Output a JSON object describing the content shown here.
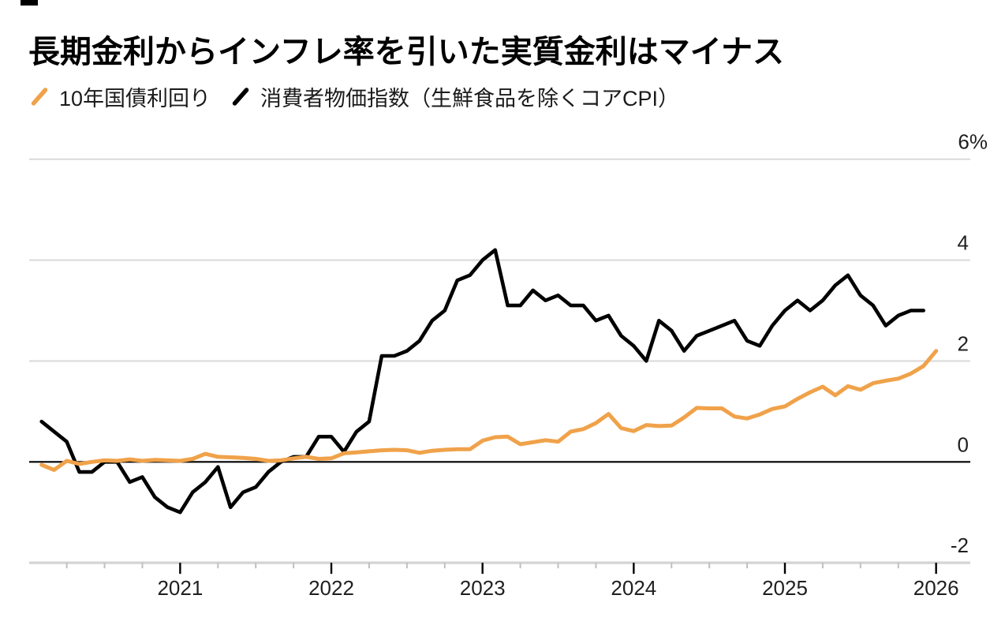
{
  "header": {
    "title": "長期金利からインフレ率を引いた実質金利はマイナス"
  },
  "legend": {
    "items": [
      {
        "label": "10年国債利回り",
        "color": "#F0A24A"
      },
      {
        "label": "消費者物価指数（生鮮食品を除くコアCPI）",
        "color": "#000000"
      }
    ]
  },
  "chart_data": {
    "type": "line",
    "title": "長期金利からインフレ率を引いた実質金利はマイナス",
    "x_axis": {
      "tick_labels": [
        "2021",
        "2022",
        "2023",
        "2024",
        "2025",
        "2026"
      ],
      "minor_ticks": "quarterly",
      "start": "2020-01",
      "end": "2026-03"
    },
    "y_axis": {
      "unit": "%",
      "ticks": [
        {
          "value": 6,
          "label": "6%"
        },
        {
          "value": 4,
          "label": "4"
        },
        {
          "value": 2,
          "label": "2"
        },
        {
          "value": 0,
          "label": "0"
        },
        {
          "value": -2,
          "label": "-2"
        }
      ],
      "range": [
        -2.4,
        6.4
      ],
      "zero_baseline": true
    },
    "grid_color": "#d9d9d9",
    "axis_line_color": "#d4d4d4",
    "zero_line_color": "#000000",
    "legend_position": "top-left",
    "series": [
      {
        "name": "10年国債利回り",
        "color": "#F0A24A",
        "start_month": "2020-01",
        "frequency": "monthly",
        "values": [
          -0.06,
          -0.16,
          0.02,
          -0.04,
          0.0,
          0.03,
          0.02,
          0.05,
          0.02,
          0.04,
          0.03,
          0.02,
          0.06,
          0.16,
          0.1,
          0.09,
          0.08,
          0.06,
          0.02,
          0.03,
          0.07,
          0.1,
          0.06,
          0.07,
          0.17,
          0.19,
          0.21,
          0.23,
          0.24,
          0.23,
          0.18,
          0.22,
          0.24,
          0.25,
          0.25,
          0.42,
          0.49,
          0.5,
          0.35,
          0.39,
          0.43,
          0.4,
          0.6,
          0.65,
          0.77,
          0.95,
          0.67,
          0.61,
          0.73,
          0.71,
          0.72,
          0.88,
          1.07,
          1.06,
          1.06,
          0.9,
          0.86,
          0.94,
          1.05,
          1.1,
          1.25,
          1.38,
          1.49,
          1.32,
          1.5,
          1.43,
          1.56,
          1.61,
          1.65,
          1.75,
          1.9,
          2.2
        ]
      },
      {
        "name": "消費者物価指数（生鮮食品を除くコアCPI）",
        "color": "#000000",
        "start_month": "2020-01",
        "frequency": "monthly",
        "values": [
          0.8,
          0.6,
          0.4,
          -0.2,
          -0.2,
          0.0,
          0.0,
          -0.4,
          -0.3,
          -0.7,
          -0.9,
          -1.0,
          -0.6,
          -0.4,
          -0.1,
          -0.9,
          -0.6,
          -0.5,
          -0.2,
          0.0,
          0.1,
          0.1,
          0.5,
          0.5,
          0.2,
          0.6,
          0.8,
          2.1,
          2.1,
          2.2,
          2.4,
          2.8,
          3.0,
          3.6,
          3.7,
          4.0,
          4.2,
          3.1,
          3.1,
          3.4,
          3.2,
          3.3,
          3.1,
          3.1,
          2.8,
          2.9,
          2.5,
          2.3,
          2.0,
          2.8,
          2.6,
          2.2,
          2.5,
          2.6,
          2.7,
          2.8,
          2.4,
          2.3,
          2.7,
          3.0,
          3.2,
          3.0,
          3.2,
          3.5,
          3.7,
          3.3,
          3.1,
          2.7,
          2.9,
          3.0,
          3.0
        ]
      }
    ]
  }
}
